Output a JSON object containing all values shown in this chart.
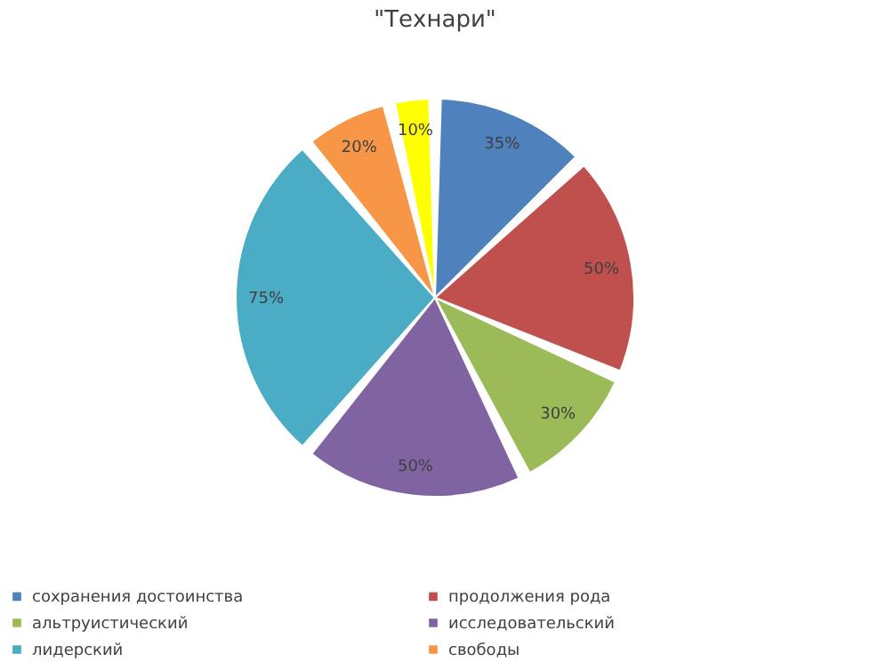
{
  "chart_data": {
    "type": "pie",
    "title": "\"Технари\"",
    "categories": [
      "сохранения достоинства",
      "продолжения рода",
      "альтруистический",
      "исследовательский",
      "лидерский",
      "свободы",
      null
    ],
    "values": [
      35,
      50,
      30,
      50,
      75,
      20,
      10
    ],
    "value_labels": [
      "35%",
      "50%",
      "30%",
      "50%",
      "75%",
      "20%",
      "10%"
    ],
    "colors": [
      "#4f81bd",
      "#c0504d",
      "#9bbb59",
      "#8064a2",
      "#4bacc6",
      "#f79646",
      "#ffff00"
    ],
    "legend": "bottom"
  }
}
